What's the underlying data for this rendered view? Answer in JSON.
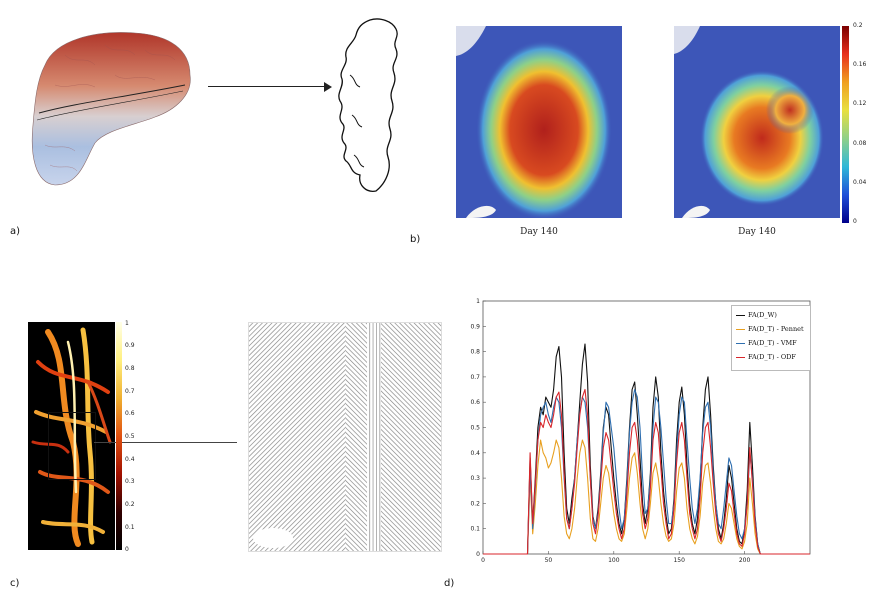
{
  "panels": {
    "a": {
      "label": "a)"
    },
    "b": {
      "label": "b)",
      "captions": [
        "Day 140",
        "Day 140"
      ],
      "colorbar": {
        "ticks": [
          "0.2",
          "0.16",
          "0.12",
          "0.08",
          "0.04",
          "0"
        ]
      }
    },
    "c": {
      "label": "c)",
      "colorbar": {
        "ticks": [
          "1",
          "0.9",
          "0.8",
          "0.7",
          "0.6",
          "0.5",
          "0.4",
          "0.3",
          "0.2",
          "0.1",
          "0"
        ]
      }
    },
    "d": {
      "label": "d)"
    }
  },
  "chart_data": {
    "type": "line",
    "title": "",
    "xlabel": "",
    "ylabel": "",
    "xlim": [
      0,
      250
    ],
    "ylim": [
      0,
      1
    ],
    "xticks": [
      "0",
      "50",
      "100",
      "150",
      "200"
    ],
    "yticks": [
      "0",
      "0.1",
      "0.2",
      "0.3",
      "0.4",
      "0.5",
      "0.6",
      "0.7",
      "0.8",
      "0.9",
      "1"
    ],
    "legend_position": "top-right",
    "x": [
      0,
      20,
      34,
      36,
      38,
      40,
      42,
      44,
      46,
      48,
      50,
      52,
      54,
      56,
      58,
      60,
      62,
      64,
      66,
      68,
      70,
      72,
      74,
      76,
      78,
      80,
      82,
      84,
      86,
      88,
      90,
      92,
      94,
      96,
      98,
      100,
      102,
      104,
      106,
      108,
      110,
      112,
      114,
      116,
      118,
      120,
      122,
      124,
      126,
      128,
      130,
      132,
      134,
      136,
      138,
      140,
      142,
      144,
      146,
      148,
      150,
      152,
      154,
      156,
      158,
      160,
      162,
      164,
      166,
      168,
      170,
      172,
      174,
      176,
      178,
      180,
      182,
      184,
      186,
      188,
      190,
      192,
      194,
      196,
      198,
      200,
      202,
      204,
      206,
      208,
      210,
      212,
      214,
      216,
      218,
      220,
      222,
      224,
      226,
      228,
      230,
      250
    ],
    "series": [
      {
        "name": "FA(D_W)",
        "color": "#111111",
        "values": [
          0,
          0,
          0,
          0.38,
          0.12,
          0.3,
          0.5,
          0.58,
          0.55,
          0.62,
          0.6,
          0.58,
          0.65,
          0.78,
          0.82,
          0.7,
          0.4,
          0.18,
          0.12,
          0.22,
          0.3,
          0.45,
          0.6,
          0.75,
          0.83,
          0.68,
          0.35,
          0.15,
          0.1,
          0.18,
          0.32,
          0.5,
          0.58,
          0.55,
          0.42,
          0.3,
          0.2,
          0.12,
          0.08,
          0.14,
          0.3,
          0.5,
          0.65,
          0.68,
          0.55,
          0.38,
          0.2,
          0.12,
          0.18,
          0.32,
          0.58,
          0.7,
          0.62,
          0.4,
          0.25,
          0.15,
          0.08,
          0.1,
          0.22,
          0.45,
          0.6,
          0.66,
          0.55,
          0.35,
          0.2,
          0.12,
          0.08,
          0.14,
          0.28,
          0.5,
          0.65,
          0.7,
          0.55,
          0.35,
          0.2,
          0.1,
          0.06,
          0.12,
          0.22,
          0.35,
          0.3,
          0.2,
          0.1,
          0.05,
          0.04,
          0.1,
          0.25,
          0.52,
          0.35,
          0.15,
          0.04,
          0,
          0,
          0,
          0,
          0,
          0,
          0,
          0,
          0,
          0,
          0
        ]
      },
      {
        "name": "FA(D_T) - Pennet",
        "color": "#e8a020",
        "values": [
          0,
          0,
          0,
          0.3,
          0.08,
          0.2,
          0.35,
          0.45,
          0.4,
          0.38,
          0.34,
          0.36,
          0.4,
          0.45,
          0.42,
          0.3,
          0.15,
          0.08,
          0.06,
          0.1,
          0.18,
          0.3,
          0.4,
          0.45,
          0.42,
          0.3,
          0.14,
          0.06,
          0.05,
          0.1,
          0.2,
          0.3,
          0.35,
          0.32,
          0.24,
          0.16,
          0.1,
          0.06,
          0.05,
          0.08,
          0.18,
          0.3,
          0.38,
          0.4,
          0.32,
          0.2,
          0.1,
          0.06,
          0.1,
          0.2,
          0.32,
          0.36,
          0.3,
          0.2,
          0.12,
          0.07,
          0.05,
          0.06,
          0.12,
          0.25,
          0.34,
          0.36,
          0.3,
          0.18,
          0.1,
          0.06,
          0.04,
          0.07,
          0.15,
          0.28,
          0.35,
          0.36,
          0.28,
          0.18,
          0.1,
          0.05,
          0.04,
          0.06,
          0.12,
          0.2,
          0.18,
          0.12,
          0.06,
          0.03,
          0.02,
          0.05,
          0.12,
          0.3,
          0.2,
          0.08,
          0.02,
          0,
          0,
          0,
          0,
          0,
          0,
          0,
          0,
          0,
          0,
          0
        ]
      },
      {
        "name": "FA(D_T) - VMF",
        "color": "#2f6fb0",
        "values": [
          0,
          0,
          0,
          0.34,
          0.1,
          0.26,
          0.45,
          0.55,
          0.58,
          0.6,
          0.55,
          0.52,
          0.58,
          0.62,
          0.6,
          0.5,
          0.3,
          0.14,
          0.1,
          0.18,
          0.3,
          0.45,
          0.56,
          0.62,
          0.6,
          0.5,
          0.3,
          0.14,
          0.1,
          0.16,
          0.3,
          0.48,
          0.6,
          0.58,
          0.5,
          0.42,
          0.3,
          0.18,
          0.1,
          0.14,
          0.28,
          0.48,
          0.6,
          0.65,
          0.62,
          0.5,
          0.3,
          0.16,
          0.18,
          0.3,
          0.5,
          0.62,
          0.6,
          0.5,
          0.36,
          0.22,
          0.12,
          0.12,
          0.2,
          0.4,
          0.55,
          0.62,
          0.6,
          0.45,
          0.3,
          0.18,
          0.12,
          0.18,
          0.3,
          0.48,
          0.58,
          0.6,
          0.5,
          0.32,
          0.2,
          0.12,
          0.1,
          0.18,
          0.28,
          0.38,
          0.35,
          0.25,
          0.15,
          0.08,
          0.06,
          0.1,
          0.2,
          0.4,
          0.3,
          0.14,
          0.04,
          0,
          0,
          0,
          0,
          0,
          0,
          0,
          0,
          0,
          0,
          0
        ]
      },
      {
        "name": "FA(D_T) - ODF",
        "color": "#d8262b",
        "values": [
          0,
          0,
          0,
          0.4,
          0.12,
          0.28,
          0.45,
          0.52,
          0.5,
          0.55,
          0.52,
          0.5,
          0.55,
          0.62,
          0.64,
          0.55,
          0.32,
          0.14,
          0.1,
          0.18,
          0.28,
          0.42,
          0.55,
          0.62,
          0.65,
          0.55,
          0.3,
          0.12,
          0.08,
          0.15,
          0.28,
          0.42,
          0.48,
          0.45,
          0.35,
          0.25,
          0.16,
          0.1,
          0.06,
          0.1,
          0.24,
          0.4,
          0.5,
          0.52,
          0.45,
          0.3,
          0.16,
          0.1,
          0.14,
          0.26,
          0.45,
          0.52,
          0.48,
          0.34,
          0.2,
          0.12,
          0.06,
          0.08,
          0.18,
          0.36,
          0.48,
          0.52,
          0.45,
          0.3,
          0.16,
          0.1,
          0.06,
          0.1,
          0.22,
          0.4,
          0.5,
          0.52,
          0.42,
          0.28,
          0.16,
          0.08,
          0.05,
          0.1,
          0.18,
          0.28,
          0.25,
          0.16,
          0.08,
          0.04,
          0.03,
          0.08,
          0.2,
          0.42,
          0.28,
          0.12,
          0.03,
          0,
          0,
          0,
          0,
          0,
          0,
          0,
          0,
          0,
          0,
          0
        ]
      }
    ]
  }
}
